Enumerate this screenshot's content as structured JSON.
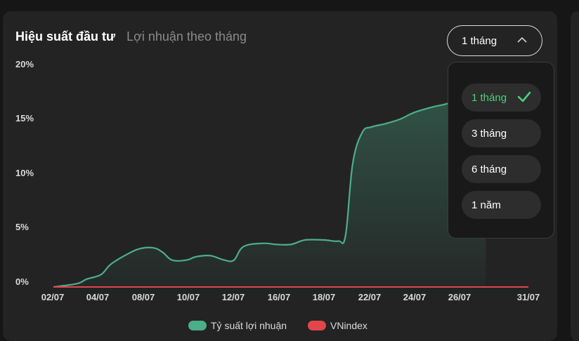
{
  "header": {
    "tab_active": "Hiệu suất đầu tư",
    "tab_inactive": "Lợi nhuận theo tháng"
  },
  "period_selector": {
    "selected": "1 tháng",
    "options": [
      "1 tháng",
      "3 tháng",
      "6 tháng",
      "1 năm"
    ]
  },
  "colors": {
    "portfolio": "#4cae8a",
    "vnindex": "#e0464c",
    "check": "#4cd07a"
  },
  "icons": [
    "chevron-up-icon",
    "check-icon"
  ],
  "chart_data": {
    "type": "area",
    "y_ticks": [
      "0%",
      "5%",
      "10%",
      "15%",
      "20%"
    ],
    "ylim": [
      0,
      20
    ],
    "x_ticks": [
      "02/07",
      "04/07",
      "08/07",
      "10/07",
      "12/07",
      "16/07",
      "18/07",
      "22/07",
      "24/07",
      "26/07",
      "31/07"
    ],
    "series": [
      {
        "name": "Tỷ suất lợi nhuận",
        "values": [
          [
            0,
            0
          ],
          [
            0.05,
            0.3
          ],
          [
            0.07,
            0.7
          ],
          [
            0.1,
            1.1
          ],
          [
            0.12,
            2.0
          ],
          [
            0.15,
            2.8
          ],
          [
            0.18,
            3.4
          ],
          [
            0.21,
            3.5
          ],
          [
            0.23,
            3.1
          ],
          [
            0.25,
            2.4
          ],
          [
            0.28,
            2.4
          ],
          [
            0.3,
            2.7
          ],
          [
            0.33,
            2.8
          ],
          [
            0.36,
            2.4
          ],
          [
            0.38,
            2.4
          ],
          [
            0.4,
            3.6
          ],
          [
            0.44,
            3.9
          ],
          [
            0.47,
            3.8
          ],
          [
            0.5,
            3.8
          ],
          [
            0.53,
            4.2
          ],
          [
            0.57,
            4.2
          ],
          [
            0.6,
            4.1
          ],
          [
            0.615,
            4.6
          ],
          [
            0.63,
            11.0
          ],
          [
            0.65,
            13.8
          ],
          [
            0.67,
            14.3
          ],
          [
            0.7,
            14.6
          ],
          [
            0.73,
            15.0
          ],
          [
            0.76,
            15.6
          ],
          [
            0.8,
            16.1
          ],
          [
            0.83,
            16.4
          ],
          [
            0.86,
            17.0
          ],
          [
            0.88,
            17.4
          ],
          [
            0.91,
            17.4
          ]
        ]
      },
      {
        "name": "VNindex",
        "values": [
          [
            0,
            0
          ],
          [
            1,
            0
          ]
        ]
      }
    ],
    "legend": [
      "Tỷ suất lợi nhuận",
      "VNindex"
    ],
    "legend_position": "bottom"
  }
}
